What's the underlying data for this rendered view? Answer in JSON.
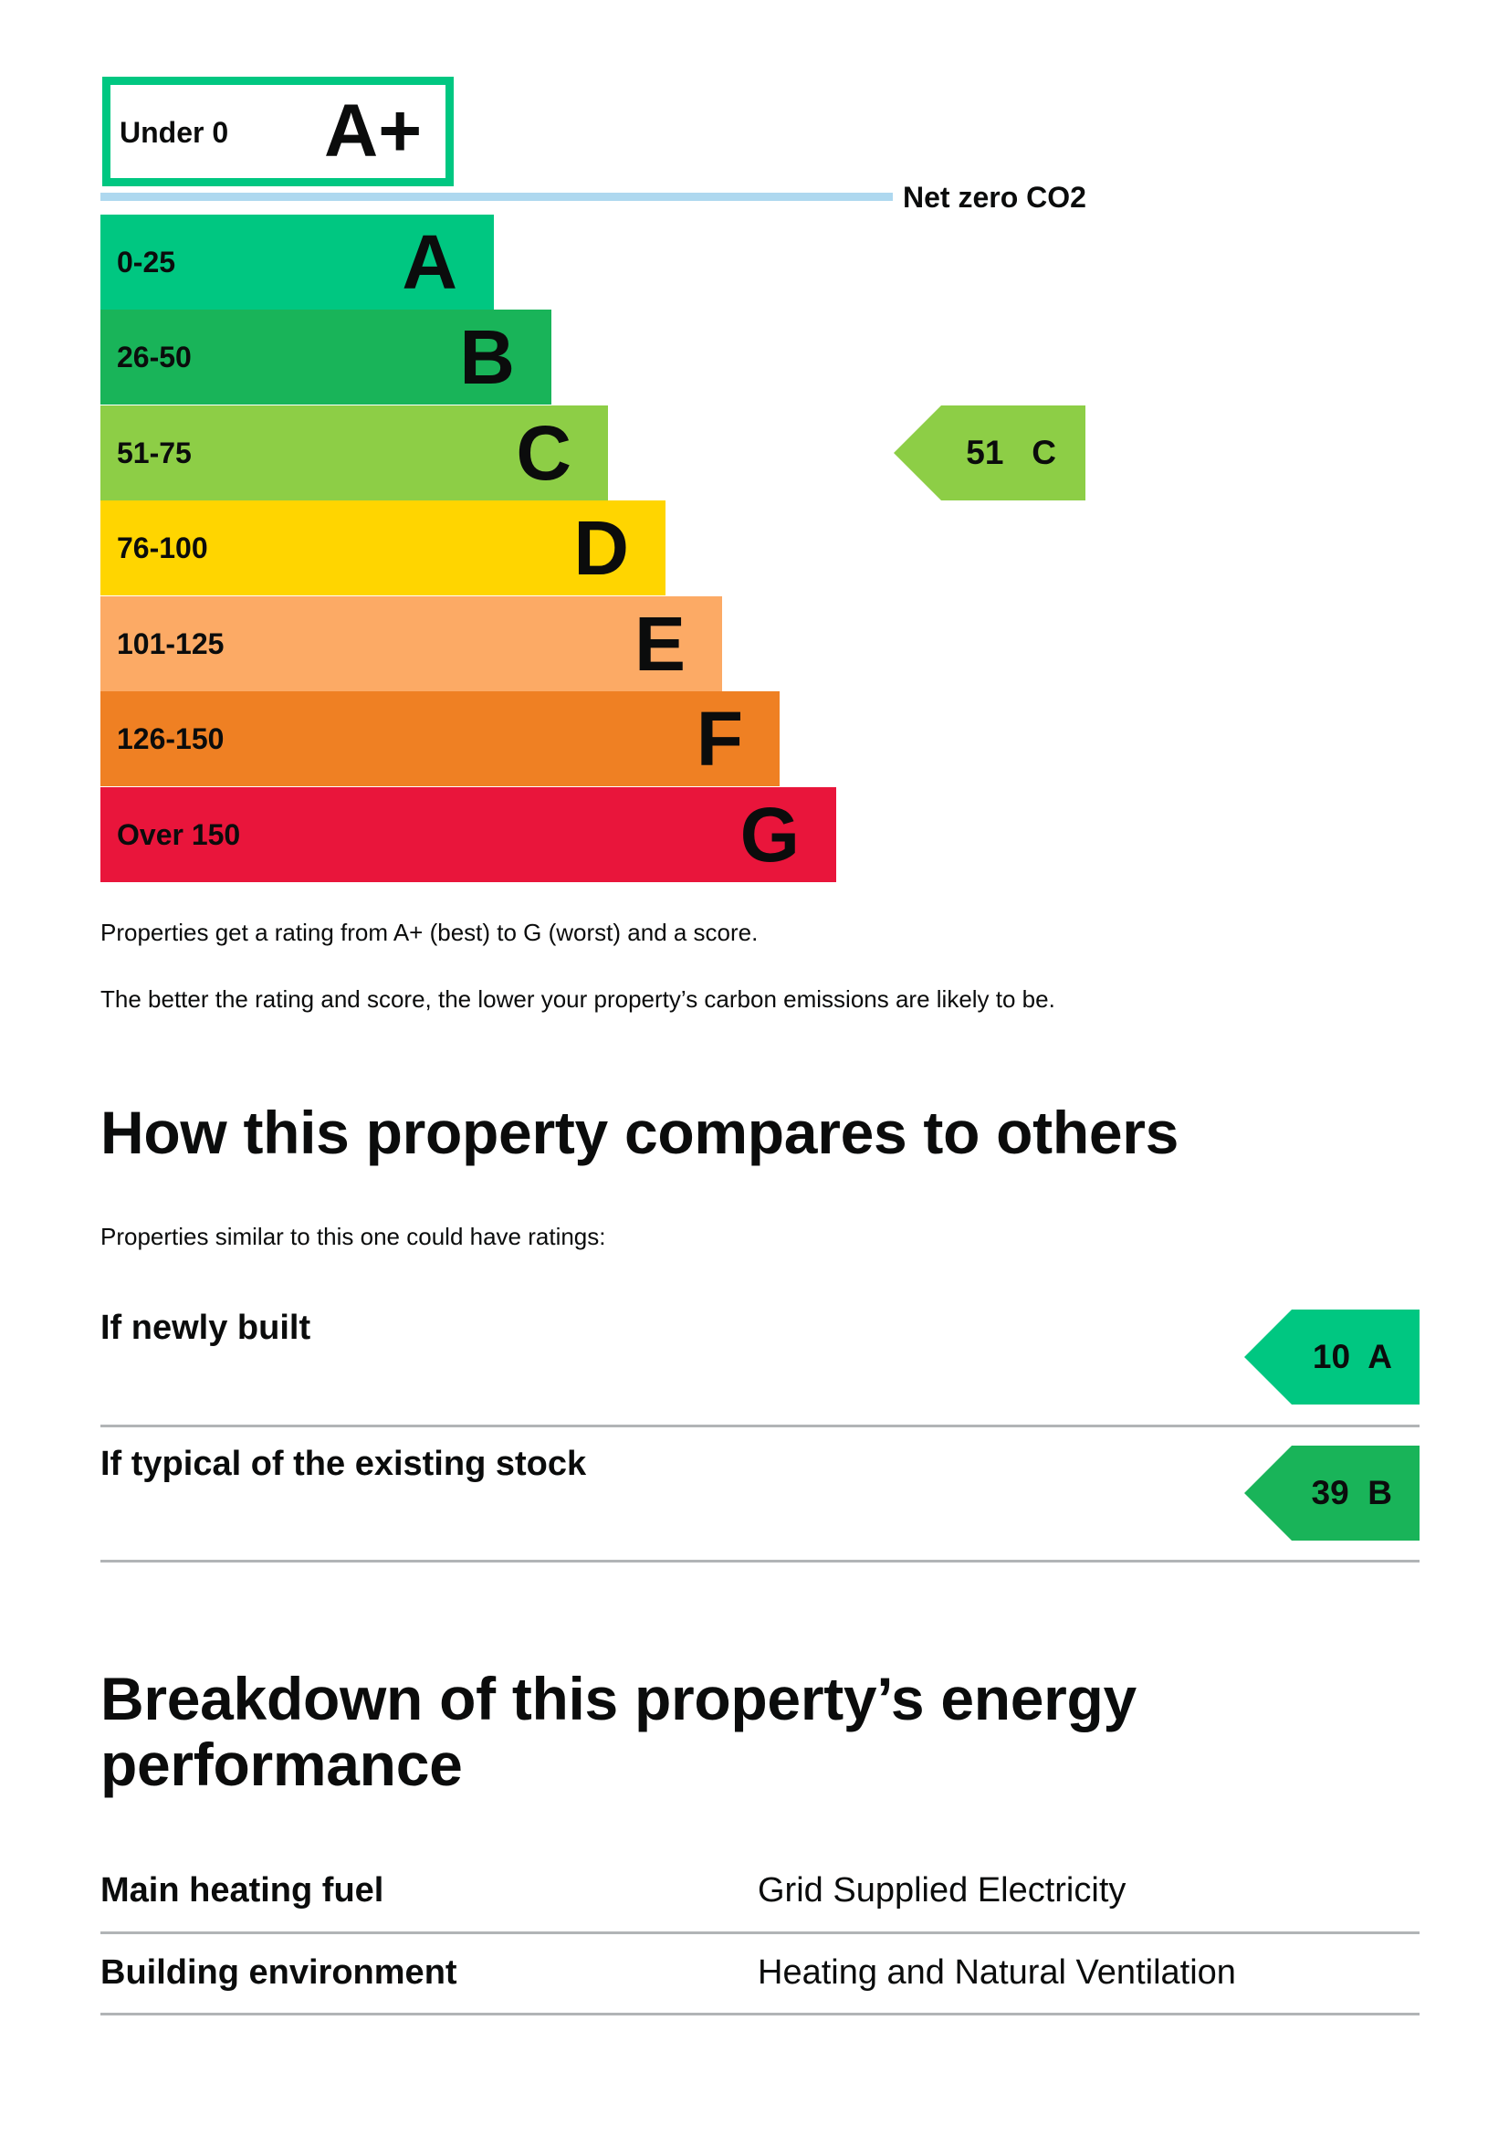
{
  "rating_scale": {
    "top_band": {
      "range": "Under 0",
      "letter": "A+",
      "color": "#00c781"
    },
    "net_zero_label": "Net zero CO2",
    "bands": [
      {
        "range": "0-25",
        "letter": "A",
        "color": "#00c781"
      },
      {
        "range": "26-50",
        "letter": "B",
        "color": "#19b459"
      },
      {
        "range": "51-75",
        "letter": "C",
        "color": "#8dce46"
      },
      {
        "range": "76-100",
        "letter": "D",
        "color": "#ffd500"
      },
      {
        "range": "101-125",
        "letter": "E",
        "color": "#fcaa65"
      },
      {
        "range": "126-150",
        "letter": "F",
        "color": "#ef8023"
      },
      {
        "range": "Over 150",
        "letter": "G",
        "color": "#e9153b"
      }
    ],
    "current": {
      "score": "51",
      "letter": "C",
      "color": "#8dce46"
    }
  },
  "explanation": {
    "line1": "Properties get a rating from A+ (best) to G (worst) and a score.",
    "line2": "The better the rating and score, the lower your property’s carbon emissions are likely to be."
  },
  "comparison": {
    "heading": "How this property compares to others",
    "intro": "Properties similar to this one could have ratings:",
    "rows": [
      {
        "label": "If newly built",
        "score": "10",
        "letter": "A",
        "color": "#00c781"
      },
      {
        "label": "If typical of the existing stock",
        "score": "39",
        "letter": "B",
        "color": "#19b459"
      }
    ]
  },
  "breakdown": {
    "heading_line1": "Breakdown of this property’s energy",
    "heading_line2": "performance",
    "rows": [
      {
        "label": "Main heating fuel",
        "value": "Grid Supplied Electricity"
      },
      {
        "label": "Building environment",
        "value": "Heating and Natural Ventilation"
      }
    ]
  }
}
